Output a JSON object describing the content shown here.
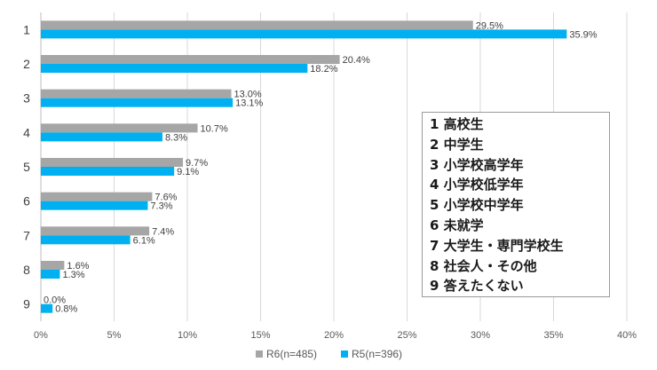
{
  "chart_data": {
    "type": "bar",
    "orientation": "horizontal",
    "categories": [
      "1",
      "2",
      "3",
      "4",
      "5",
      "6",
      "7",
      "8",
      "9"
    ],
    "series": [
      {
        "name": "R6(n=485)",
        "color": "#a6a6a6",
        "values": [
          29.5,
          20.4,
          13.0,
          10.7,
          9.7,
          7.6,
          7.4,
          1.6,
          0.0
        ],
        "labels": [
          "29.5%",
          "20.4%",
          "13.0%",
          "10.7%",
          "9.7%",
          "7.6%",
          "7.4%",
          "1.6%",
          "0.0%"
        ]
      },
      {
        "name": "R5(n=396)",
        "color": "#00b0f0",
        "values": [
          35.9,
          18.2,
          13.1,
          8.3,
          9.1,
          7.3,
          6.1,
          1.3,
          0.8
        ],
        "labels": [
          "35.9%",
          "18.2%",
          "13.1%",
          "8.3%",
          "9.1%",
          "7.3%",
          "6.1%",
          "1.3%",
          "0.8%"
        ]
      }
    ],
    "xlim": [
      0,
      40
    ],
    "x_ticks": [
      0,
      5,
      10,
      15,
      20,
      25,
      30,
      35,
      40
    ],
    "x_tick_labels": [
      "0%",
      "5%",
      "10%",
      "15%",
      "20%",
      "25%",
      "30%",
      "35%",
      "40%"
    ],
    "grid": "vertical",
    "legend": "bottom-center",
    "category_key": [
      "1 高校生",
      "2 中学生",
      "3 小学校高学年",
      "4 小学校低学年",
      "5 小学校中学年",
      "6 未就学",
      "7 大学生・専門学校生",
      "8 社会人・その他",
      "9 答えたくない"
    ]
  }
}
